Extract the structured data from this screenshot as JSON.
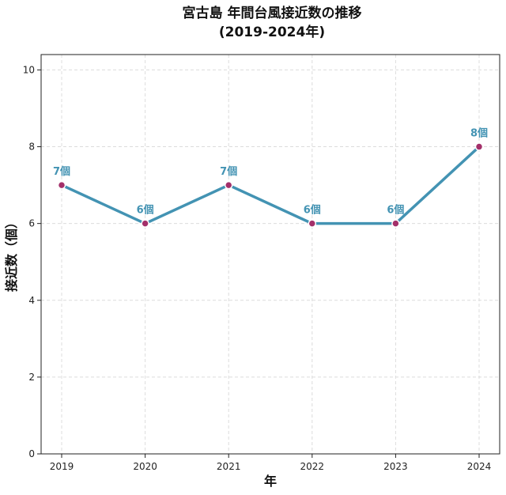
{
  "chart_data": {
    "type": "line",
    "title_line1": "宮古島 年間台風接近数の推移",
    "title_line2": "(2019-2024年)",
    "xlabel": "年",
    "ylabel": "接近数（個）",
    "x": [
      "2019",
      "2020",
      "2021",
      "2022",
      "2023",
      "2024"
    ],
    "y": [
      7,
      6,
      7,
      6,
      6,
      8
    ],
    "data_labels": [
      "7個",
      "6個",
      "7個",
      "6個",
      "6個",
      "8個"
    ],
    "ylim": [
      0,
      10.4
    ],
    "yticks": [
      0,
      2,
      4,
      6,
      8,
      10
    ],
    "grid": true,
    "line_color": "#4393b3",
    "marker_color": "#a3306a"
  }
}
